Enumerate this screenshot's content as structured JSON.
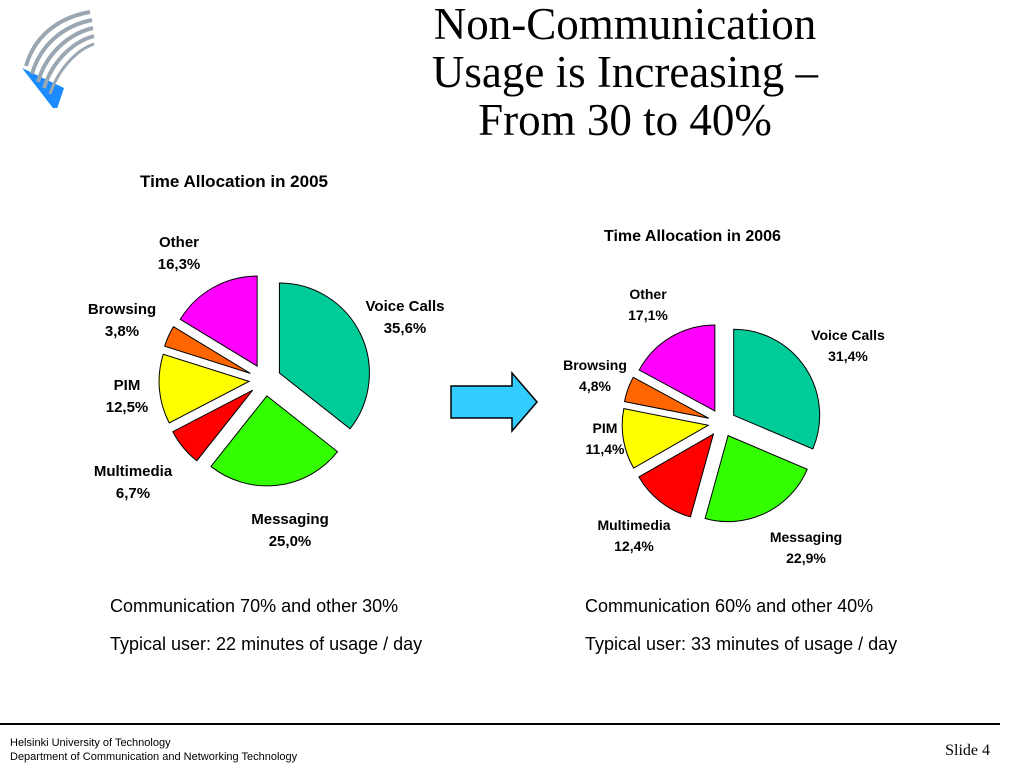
{
  "slide": {
    "title_lines": [
      "Non-Communication",
      "Usage is Increasing –",
      "From 30 to 40%"
    ],
    "footer": {
      "line1": "Helsinki University of Technology",
      "line2": "Department of Communication and Networking Technology",
      "slide_label": "Slide 4"
    },
    "captions": {
      "left_line1": "Communication 70% and other 30%",
      "left_line2": "Typical user: 22 minutes of usage / day",
      "right_line1": "Communication 60% and other 40%",
      "right_line2": "Typical user: 33 minutes of usage  / day"
    },
    "arrow_color": "#33CCFF"
  },
  "chart_data": [
    {
      "type": "pie",
      "title": "Time Allocation in 2005",
      "categories": [
        "Voice Calls",
        "Messaging",
        "Multimedia",
        "PIM",
        "Browsing",
        "Other"
      ],
      "values": [
        35.6,
        25.0,
        6.7,
        12.5,
        3.8,
        16.3
      ],
      "value_labels": [
        "35,6%",
        "25,0%",
        "6,7%",
        "12,5%",
        "3,8%",
        "16,3%"
      ],
      "colors": [
        "#00CC99",
        "#33FF00",
        "#FF0000",
        "#FFFF00",
        "#FF6600",
        "#FF00FF"
      ],
      "exploded": true
    },
    {
      "type": "pie",
      "title": "Time Allocation in 2006",
      "categories": [
        "Voice Calls",
        "Messaging",
        "Multimedia",
        "PIM",
        "Browsing",
        "Other"
      ],
      "values": [
        31.4,
        22.9,
        12.4,
        11.4,
        4.8,
        17.1
      ],
      "value_labels": [
        "31,4%",
        "22,9%",
        "12,4%",
        "11,4%",
        "4,8%",
        "17,1%"
      ],
      "colors": [
        "#00CC99",
        "#33FF00",
        "#FF0000",
        "#FFFF00",
        "#FF6600",
        "#FF00FF"
      ],
      "exploded": true
    }
  ]
}
